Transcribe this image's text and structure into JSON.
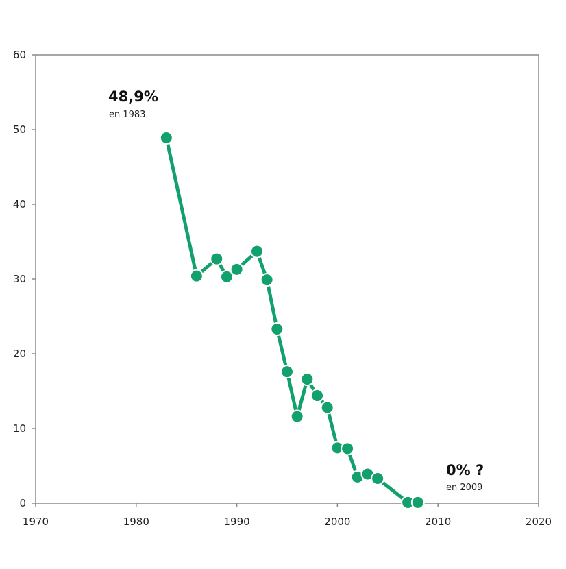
{
  "chart_data": {
    "type": "line",
    "title": "",
    "xlabel": "",
    "ylabel": "",
    "xlim": [
      1970,
      2020
    ],
    "ylim": [
      0,
      60
    ],
    "x_ticks": [
      1970,
      1980,
      1990,
      2000,
      2010,
      2020
    ],
    "y_ticks": [
      0,
      10,
      20,
      30,
      40,
      50,
      60
    ],
    "grid": false,
    "line_color": "#12a06c",
    "series": [
      {
        "x": [
          1983,
          1986,
          1988,
          1989,
          1990,
          1992,
          1993,
          1994,
          1995,
          1996,
          1997,
          1998,
          1999,
          2000,
          2001,
          2002,
          2003,
          2004,
          2007,
          2008
        ],
        "values": [
          48.9,
          30.4,
          32.7,
          30.3,
          31.3,
          33.7,
          29.9,
          23.3,
          17.6,
          11.6,
          16.6,
          14.4,
          12.8,
          7.4,
          7.3,
          3.5,
          3.9,
          3.3,
          0.1,
          0.1
        ]
      }
    ],
    "annotations": [
      {
        "value": "48,9%",
        "note": "en 1983"
      },
      {
        "value": "0% ?",
        "note": "en 2009"
      }
    ]
  }
}
